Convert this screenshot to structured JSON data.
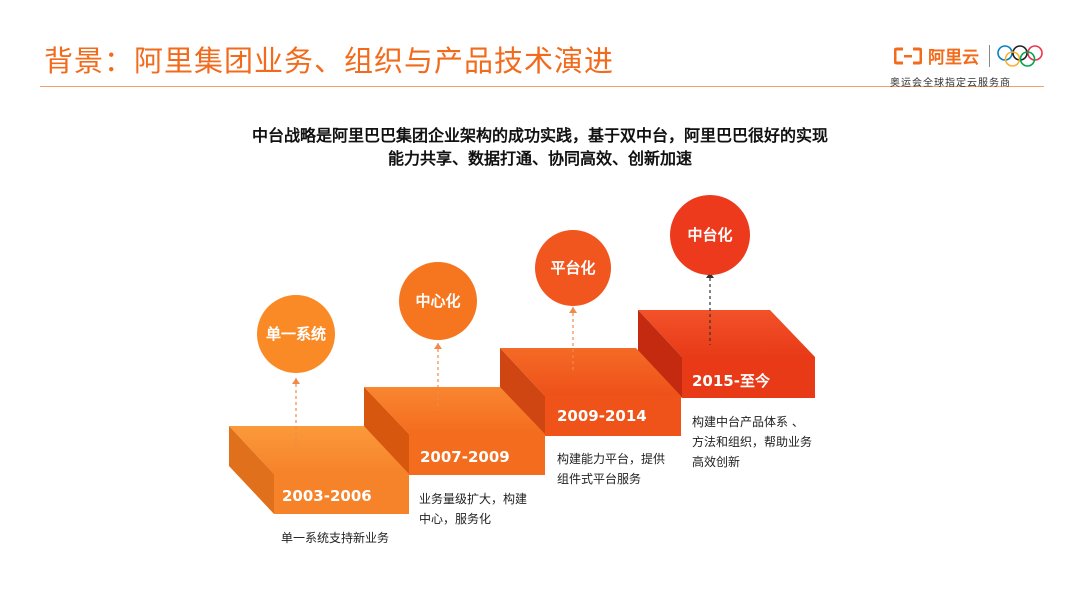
{
  "header": {
    "title": "背景：阿里集团业务、组织与产品技术演进",
    "brand_name": "阿里云",
    "brand_subtitle": "奥运会全球指定云服务商"
  },
  "headline": {
    "line1": "中台战略是阿里巴巴集团企业架构的成功实践，基于双中台，阿里巴巴很好的实现",
    "line2": "能力共享、数据打通、协同高效、创新加速"
  },
  "colors": {
    "accent": "#f26b1d",
    "step1_top": "#f98c2a",
    "step2_top": "#f7741f",
    "step3_top": "#f25a1e",
    "step4_top": "#ef3f1a"
  },
  "stages": [
    {
      "period": "2003-2006",
      "milestone": "单一系统",
      "description": [
        "单一系统支持新业务"
      ]
    },
    {
      "period": "2007-2009",
      "milestone": "中心化",
      "description": [
        "业务量级扩大，构建",
        "中心，服务化"
      ]
    },
    {
      "period": "2009-2014",
      "milestone": "平台化",
      "description": [
        "构建能力平台，提供",
        "组件式平台服务"
      ]
    },
    {
      "period": "2015-至今",
      "milestone": "中台化",
      "description": [
        "构建中台产品体系 、",
        "方法和组织，帮助业务",
        "高效创新"
      ]
    }
  ]
}
